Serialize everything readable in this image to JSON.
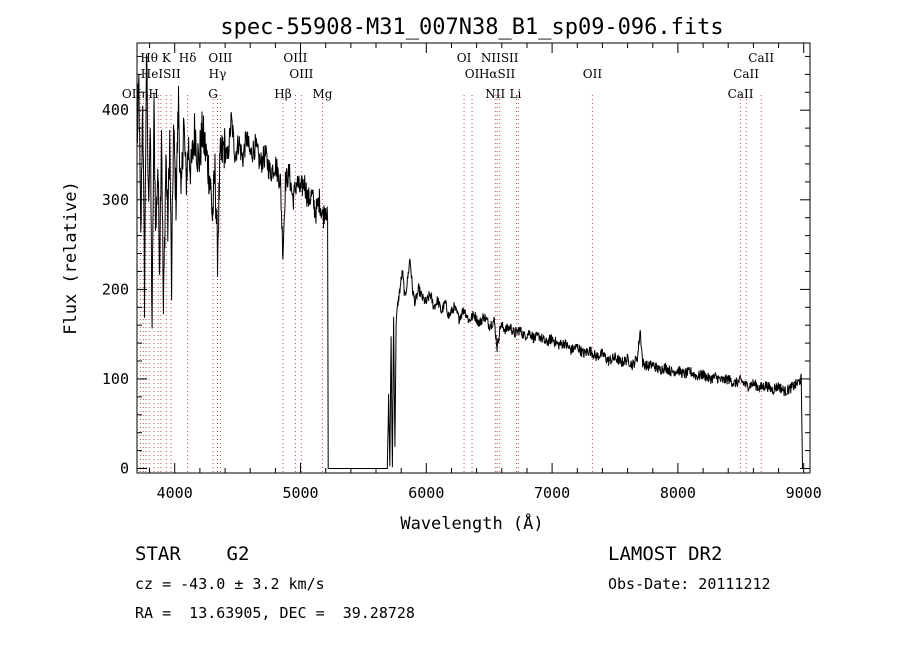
{
  "title": "spec-55908-M31_007N38_B1_sp09-096.fits",
  "chart_data": {
    "type": "line",
    "title": "spec-55908-M31_007N38_B1_sp09-096.fits",
    "xlabel": "Wavelength (Å)",
    "ylabel": "Flux (relative)",
    "xlim": [
      3700,
      9050
    ],
    "ylim": [
      -5,
      475
    ],
    "x_ticks": [
      4000,
      5000,
      6000,
      7000,
      8000,
      9000
    ],
    "y_ticks": [
      0,
      100,
      200,
      300,
      400
    ],
    "series": [
      {
        "points": [
          [
            3700,
            360
          ],
          [
            3715,
            430
          ],
          [
            3730,
            250
          ],
          [
            3745,
            420
          ],
          [
            3760,
            190
          ],
          [
            3775,
            470
          ],
          [
            3790,
            300
          ],
          [
            3805,
            380
          ],
          [
            3820,
            160
          ],
          [
            3835,
            400
          ],
          [
            3850,
            260
          ],
          [
            3865,
            340
          ],
          [
            3880,
            230
          ],
          [
            3895,
            390
          ],
          [
            3910,
            170
          ],
          [
            3930,
            350
          ],
          [
            3945,
            270
          ],
          [
            3960,
            370
          ],
          [
            3975,
            200
          ],
          [
            3990,
            380
          ],
          [
            4010,
            300
          ],
          [
            4030,
            410
          ],
          [
            4050,
            290
          ],
          [
            4070,
            390
          ],
          [
            4090,
            320
          ],
          [
            4110,
            360
          ],
          [
            4130,
            330
          ],
          [
            4160,
            380
          ],
          [
            4190,
            340
          ],
          [
            4220,
            375
          ],
          [
            4250,
            350
          ],
          [
            4280,
            325
          ],
          [
            4300,
            280
          ],
          [
            4320,
            330
          ],
          [
            4340,
            240
          ],
          [
            4360,
            340
          ],
          [
            4390,
            360
          ],
          [
            4420,
            345
          ],
          [
            4450,
            390
          ],
          [
            4480,
            350
          ],
          [
            4510,
            365
          ],
          [
            4540,
            345
          ],
          [
            4570,
            370
          ],
          [
            4600,
            350
          ],
          [
            4640,
            360
          ],
          [
            4680,
            340
          ],
          [
            4720,
            350
          ],
          [
            4760,
            330
          ],
          [
            4800,
            340
          ],
          [
            4840,
            320
          ],
          [
            4860,
            240
          ],
          [
            4880,
            320
          ],
          [
            4910,
            330
          ],
          [
            4940,
            300
          ],
          [
            4970,
            320
          ],
          [
            5000,
            310
          ],
          [
            5030,
            320
          ],
          [
            5060,
            300
          ],
          [
            5090,
            305
          ],
          [
            5120,
            285
          ],
          [
            5150,
            300
          ],
          [
            5180,
            280
          ],
          [
            5200,
            295
          ],
          [
            5215,
            275
          ],
          [
            5220,
            0
          ],
          [
            5690,
            0
          ],
          [
            5700,
            80
          ],
          [
            5710,
            5
          ],
          [
            5720,
            150
          ],
          [
            5730,
            0
          ],
          [
            5740,
            175
          ],
          [
            5750,
            20
          ],
          [
            5760,
            160
          ],
          [
            5770,
            180
          ],
          [
            5790,
            200
          ],
          [
            5810,
            220
          ],
          [
            5830,
            190
          ],
          [
            5850,
            210
          ],
          [
            5870,
            235
          ],
          [
            5890,
            200
          ],
          [
            5910,
            185
          ],
          [
            5940,
            200
          ],
          [
            5970,
            190
          ],
          [
            6000,
            185
          ],
          [
            6030,
            195
          ],
          [
            6060,
            180
          ],
          [
            6090,
            188
          ],
          [
            6120,
            175
          ],
          [
            6150,
            185
          ],
          [
            6180,
            170
          ],
          [
            6220,
            180
          ],
          [
            6260,
            168
          ],
          [
            6300,
            178
          ],
          [
            6340,
            165
          ],
          [
            6380,
            172
          ],
          [
            6420,
            162
          ],
          [
            6460,
            170
          ],
          [
            6500,
            160
          ],
          [
            6540,
            165
          ],
          [
            6563,
            135
          ],
          [
            6590,
            160
          ],
          [
            6630,
            155
          ],
          [
            6670,
            158
          ],
          [
            6700,
            150
          ],
          [
            6740,
            155
          ],
          [
            6780,
            148
          ],
          [
            6820,
            152
          ],
          [
            6860,
            145
          ],
          [
            6900,
            148
          ],
          [
            6950,
            140
          ],
          [
            7000,
            145
          ],
          [
            7050,
            138
          ],
          [
            7100,
            140
          ],
          [
            7150,
            132
          ],
          [
            7200,
            136
          ],
          [
            7250,
            128
          ],
          [
            7300,
            132
          ],
          [
            7350,
            125
          ],
          [
            7400,
            128
          ],
          [
            7450,
            120
          ],
          [
            7500,
            124
          ],
          [
            7550,
            118
          ],
          [
            7600,
            122
          ],
          [
            7640,
            115
          ],
          [
            7680,
            125
          ],
          [
            7700,
            155
          ],
          [
            7720,
            118
          ],
          [
            7760,
            114
          ],
          [
            7800,
            116
          ],
          [
            7850,
            110
          ],
          [
            7900,
            113
          ],
          [
            7950,
            108
          ],
          [
            8000,
            110
          ],
          [
            8050,
            105
          ],
          [
            8100,
            108
          ],
          [
            8150,
            103
          ],
          [
            8200,
            105
          ],
          [
            8250,
            100
          ],
          [
            8300,
            102
          ],
          [
            8350,
            98
          ],
          [
            8400,
            100
          ],
          [
            8450,
            95
          ],
          [
            8500,
            98
          ],
          [
            8550,
            92
          ],
          [
            8600,
            95
          ],
          [
            8650,
            90
          ],
          [
            8700,
            93
          ],
          [
            8750,
            88
          ],
          [
            8800,
            92
          ],
          [
            8850,
            86
          ],
          [
            8900,
            90
          ],
          [
            8950,
            95
          ],
          [
            8980,
            100
          ],
          [
            8990,
            0
          ]
        ]
      }
    ],
    "line_labels": [
      {
        "text": "Hθ",
        "x": 3797,
        "row": 0
      },
      {
        "text": "K",
        "x": 3934,
        "row": 0
      },
      {
        "text": "Hδ",
        "x": 4102,
        "row": 0
      },
      {
        "text": "OIII",
        "x": 4363,
        "row": 0
      },
      {
        "text": "OIII",
        "x": 4959,
        "row": 0
      },
      {
        "text": "OI",
        "x": 6300,
        "row": 0
      },
      {
        "text": "NIISII",
        "x": 6583,
        "row": 0
      },
      {
        "text": "CaII",
        "x": 8662,
        "row": 0
      },
      {
        "text": "HeISII",
        "x": 3889,
        "row": 1
      },
      {
        "text": "Hγ",
        "x": 4340,
        "row": 1
      },
      {
        "text": "OIII",
        "x": 5007,
        "row": 1
      },
      {
        "text": "OI",
        "x": 6364,
        "row": 1
      },
      {
        "text": "HαSII",
        "x": 6563,
        "row": 1
      },
      {
        "text": "OII",
        "x": 7320,
        "row": 1
      },
      {
        "text": "CaII",
        "x": 8542,
        "row": 1
      },
      {
        "text": "OIIηH",
        "x": 3727,
        "row": 2
      },
      {
        "text": "G",
        "x": 4305,
        "row": 2
      },
      {
        "text": "Hβ",
        "x": 4861,
        "row": 2
      },
      {
        "text": "Mg",
        "x": 5175,
        "row": 2
      },
      {
        "text": "NII",
        "x": 6548,
        "row": 2
      },
      {
        "text": "Li",
        "x": 6708,
        "row": 2
      },
      {
        "text": "CaII",
        "x": 8498,
        "row": 2
      }
    ],
    "line_markers": [
      3727,
      3750,
      3771,
      3797,
      3835,
      3869,
      3889,
      3934,
      3970,
      4102,
      4305,
      4340,
      4363,
      4861,
      4959,
      5007,
      5175,
      6300,
      6364,
      6548,
      6563,
      6583,
      6717,
      6731,
      7320,
      8498,
      8542,
      8662
    ]
  },
  "info": {
    "object": "STAR    G2",
    "survey": "LAMOST DR2",
    "cz": "cz = -43.0 ± 3.2 km/s",
    "obs_date": "Obs-Date: 20111212",
    "radec": "RA =  13.63905, DEC =  39.28728"
  }
}
